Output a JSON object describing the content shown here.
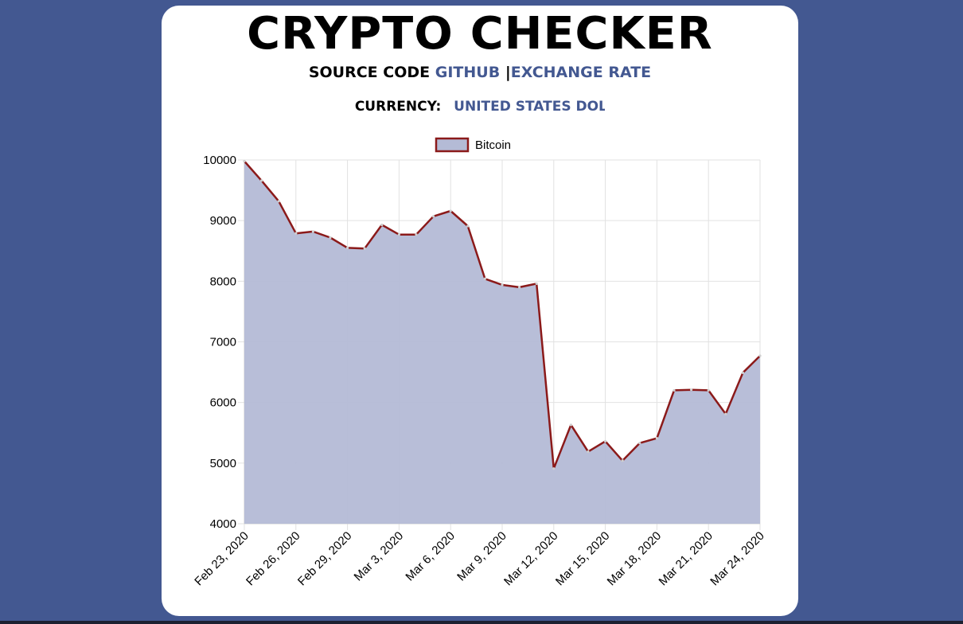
{
  "app": {
    "title": "CRYPTO CHECKER",
    "source_code_label": "SOURCE CODE",
    "github_link": "GITHUB",
    "separator": "|",
    "exchange_rate_link": "EXCHANGE RATE",
    "currency_label": "CURRENCY:",
    "currency_value": "UNITED STATES DOL"
  },
  "colors": {
    "background": "#435891",
    "card": "#ffffff",
    "link": "#435891",
    "line": "#8b1a1a",
    "fill": "#b4bbd6"
  },
  "chart_data": {
    "type": "area",
    "title": "",
    "xlabel": "",
    "ylabel": "",
    "ylim": [
      4000,
      10000
    ],
    "yticks": [
      "10000",
      "9000",
      "8000",
      "7000",
      "6000",
      "5000",
      "4000"
    ],
    "xtick_labels": [
      "Feb 23, 2020",
      "Feb 26, 2020",
      "Feb 29, 2020",
      "Mar 3, 2020",
      "Mar 6, 2020",
      "Mar 9, 2020",
      "Mar 12, 2020",
      "Mar 15, 2020",
      "Mar 18, 2020",
      "Mar 21, 2020",
      "Mar 24, 2020"
    ],
    "grid": true,
    "legend": "top-center",
    "series": [
      {
        "name": "Bitcoin",
        "x": [
          "Feb 23, 2020",
          "Feb 24, 2020",
          "Feb 25, 2020",
          "Feb 26, 2020",
          "Feb 27, 2020",
          "Feb 28, 2020",
          "Feb 29, 2020",
          "Mar 1, 2020",
          "Mar 2, 2020",
          "Mar 3, 2020",
          "Mar 4, 2020",
          "Mar 5, 2020",
          "Mar 6, 2020",
          "Mar 7, 2020",
          "Mar 8, 2020",
          "Mar 9, 2020",
          "Mar 10, 2020",
          "Mar 11, 2020",
          "Mar 12, 2020",
          "Mar 13, 2020",
          "Mar 14, 2020",
          "Mar 15, 2020",
          "Mar 16, 2020",
          "Mar 17, 2020",
          "Mar 18, 2020",
          "Mar 19, 2020",
          "Mar 20, 2020",
          "Mar 21, 2020",
          "Mar 22, 2020",
          "Mar 23, 2020",
          "Mar 24, 2020"
        ],
        "values": [
          9980,
          9660,
          9320,
          8790,
          8820,
          8720,
          8550,
          8540,
          8930,
          8770,
          8770,
          9070,
          9160,
          8910,
          8040,
          7940,
          7900,
          7960,
          4910,
          5630,
          5190,
          5360,
          5040,
          5330,
          5410,
          6200,
          6210,
          6200,
          5810,
          6490,
          6770
        ]
      }
    ]
  }
}
